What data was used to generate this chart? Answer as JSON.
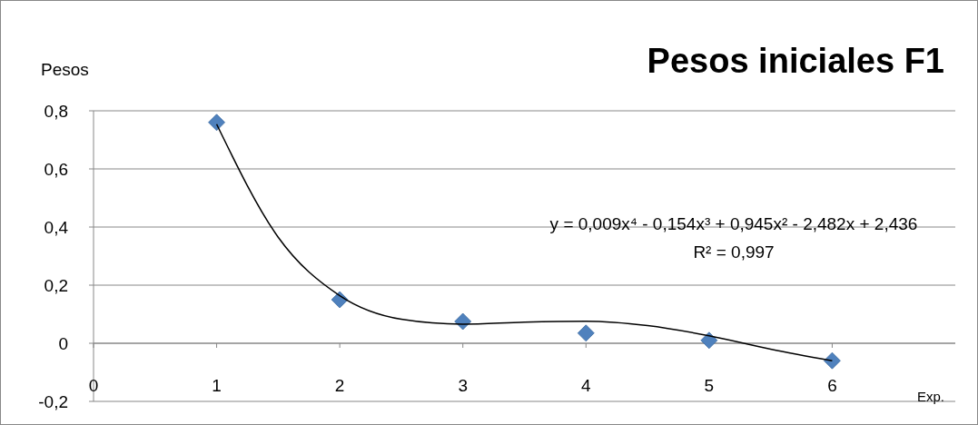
{
  "chart_data": {
    "type": "scatter",
    "title": "Pesos iniciales F1",
    "ylabel": "Pesos",
    "xlabel": "Exp.",
    "xlim": [
      0,
      7
    ],
    "xticks": [
      0,
      1,
      2,
      3,
      4,
      5,
      6
    ],
    "ylim": [
      -0.2,
      0.8
    ],
    "yticks": [
      {
        "value": -0.2,
        "label": "-0,2"
      },
      {
        "value": 0,
        "label": "0"
      },
      {
        "value": 0.2,
        "label": "0,2"
      },
      {
        "value": 0.4,
        "label": "0,4"
      },
      {
        "value": 0.6,
        "label": "0,6"
      },
      {
        "value": 0.8,
        "label": "0,8"
      }
    ],
    "grid": "y",
    "series": [
      {
        "marker": "diamond",
        "color": "#4f81bd",
        "x": [
          1,
          2,
          3,
          4,
          5,
          6
        ],
        "values": [
          0.76,
          0.15,
          0.075,
          0.035,
          0.01,
          -0.06
        ]
      },
      {
        "type": "line",
        "marker": "none",
        "line_style": "solid",
        "color": "#000000",
        "x": [
          1,
          1.5,
          2,
          2.5,
          3,
          3.5,
          4,
          4.5,
          5,
          5.5,
          6
        ],
        "values": [
          0.754,
          0.365,
          0.164,
          0.083,
          0.066,
          0.073,
          0.076,
          0.061,
          0.026,
          -0.02,
          -0.06
        ]
      }
    ],
    "annotations": [
      "y = 0,009x⁴ - 0,154x³ + 0,945x² - 2,482x + 2,436",
      "R² = 0,997"
    ]
  }
}
